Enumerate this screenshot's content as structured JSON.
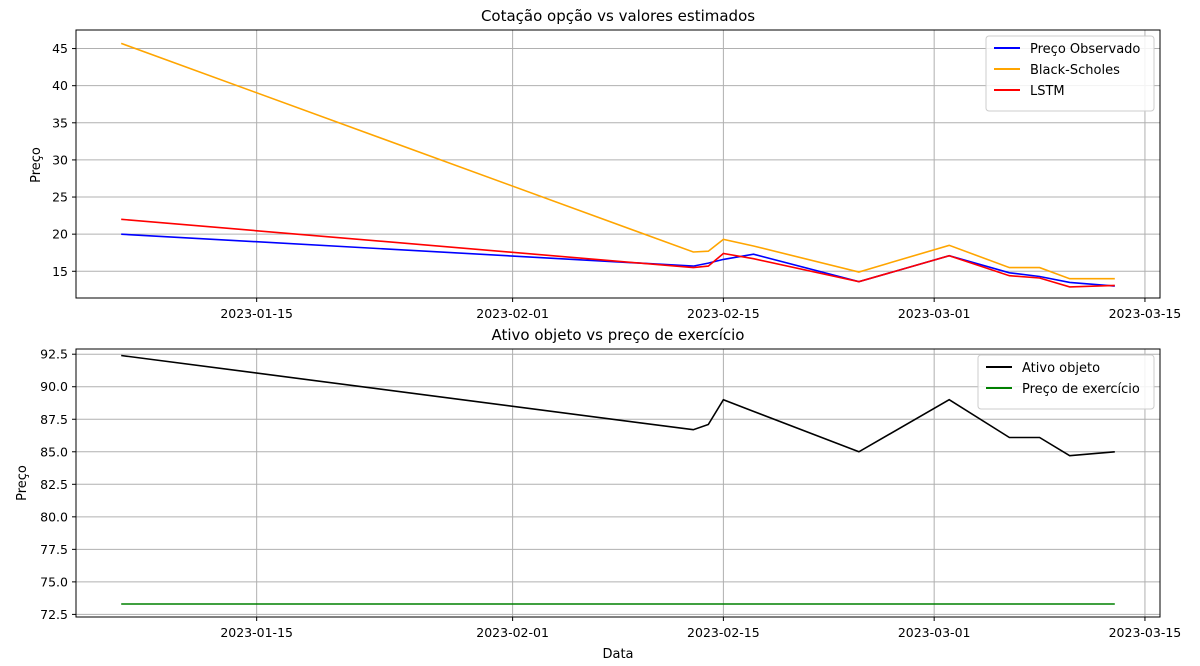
{
  "chart_data": [
    {
      "type": "line",
      "title": "Cotação opção vs valores estimados",
      "xlabel": "",
      "ylabel": "Preço",
      "x_ticks": [
        "2023-01-15",
        "2023-02-01",
        "2023-02-15",
        "2023-03-01",
        "2023-03-15"
      ],
      "y_ticks": [
        "15",
        "20",
        "25",
        "30",
        "35",
        "40",
        "45"
      ],
      "xlim": [
        "2023-01-03",
        "2023-03-16"
      ],
      "ylim": [
        11.4,
        47.5
      ],
      "grid": true,
      "legend_position": "top-right",
      "x": [
        "2023-01-06",
        "2023-02-13",
        "2023-02-14",
        "2023-02-15",
        "2023-02-17",
        "2023-02-24",
        "2023-03-02",
        "2023-03-06",
        "2023-03-08",
        "2023-03-10",
        "2023-03-13"
      ],
      "series": [
        {
          "name": "Preço Observado",
          "color": "#0000ff",
          "values": [
            20.0,
            15.7,
            16.1,
            16.6,
            17.3,
            13.6,
            17.1,
            14.8,
            14.3,
            13.5,
            13.0
          ]
        },
        {
          "name": "Black-Scholes",
          "color": "#ffa500",
          "values": [
            45.7,
            17.6,
            17.7,
            19.3,
            18.4,
            14.9,
            18.5,
            15.5,
            15.5,
            14.0,
            14.0
          ]
        },
        {
          "name": "LSTM",
          "color": "#ff0000",
          "values": [
            22.0,
            15.5,
            15.7,
            17.4,
            16.7,
            13.6,
            17.1,
            14.4,
            14.1,
            12.9,
            13.1
          ]
        }
      ]
    },
    {
      "type": "line",
      "title": "Ativo objeto vs preço de exercício",
      "xlabel": "Data",
      "ylabel": "Preço",
      "x_ticks": [
        "2023-01-15",
        "2023-02-01",
        "2023-02-15",
        "2023-03-01",
        "2023-03-15"
      ],
      "y_ticks": [
        "72.5",
        "75.0",
        "77.5",
        "80.0",
        "82.5",
        "85.0",
        "87.5",
        "90.0",
        "92.5"
      ],
      "xlim": [
        "2023-01-03",
        "2023-03-16"
      ],
      "ylim": [
        72.3,
        92.9
      ],
      "grid": true,
      "legend_position": "top-right",
      "x": [
        "2023-01-06",
        "2023-02-13",
        "2023-02-14",
        "2023-02-15",
        "2023-02-17",
        "2023-02-24",
        "2023-03-02",
        "2023-03-06",
        "2023-03-08",
        "2023-03-10",
        "2023-03-13"
      ],
      "series": [
        {
          "name": "Ativo objeto",
          "color": "#000000",
          "values": [
            92.4,
            86.7,
            87.1,
            89.0,
            88.1,
            85.0,
            89.0,
            86.1,
            86.1,
            84.7,
            85.0
          ]
        },
        {
          "name": "Preço de exercício",
          "color": "#008000",
          "values": [
            73.3,
            73.3,
            73.3,
            73.3,
            73.3,
            73.3,
            73.3,
            73.3,
            73.3,
            73.3,
            73.3
          ]
        }
      ]
    }
  ]
}
